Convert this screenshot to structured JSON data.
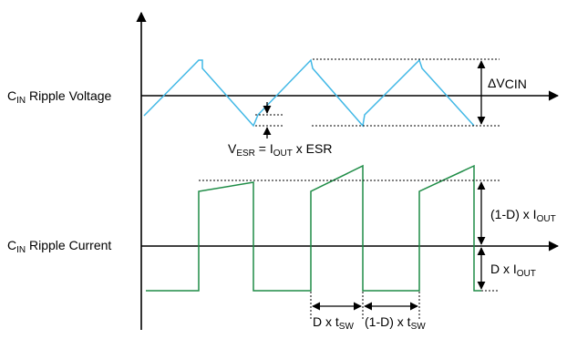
{
  "labels": {
    "voltage_row": {
      "main": "C",
      "sub": "IN",
      "rest": " Ripple Voltage"
    },
    "current_row": {
      "main": "C",
      "sub": "IN",
      "rest": " Ripple Current"
    },
    "delta_v": {
      "main": "ΔV",
      "sub": "CIN"
    },
    "vesr": {
      "v": "V",
      "v_sub": "ESR",
      "eq": " = I",
      "i_sub": "OUT",
      "rest": " x ESR"
    },
    "one_minus_d_iout": {
      "main": "(1-D) x I",
      "sub": "OUT"
    },
    "d_iout": {
      "main": "D x I",
      "sub": "OUT"
    },
    "d_tsw": {
      "main": "D x t",
      "sub": "SW"
    },
    "one_minus_d_tsw": {
      "main": "(1-D) x t",
      "sub": "SW"
    }
  },
  "colors": {
    "voltage_wave": "#41b8e6",
    "current_wave": "#1e8c46",
    "axis": "#000000"
  }
}
